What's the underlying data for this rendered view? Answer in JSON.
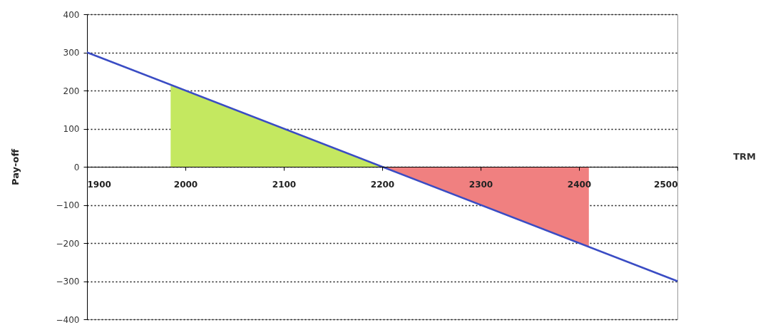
{
  "chart_data": {
    "type": "line",
    "annotations": [
      "TRM"
    ],
    "ylabel": "Pay-off",
    "xlim": [
      1900,
      2500
    ],
    "ylim": [
      -400,
      400
    ],
    "xticks": [
      1900,
      2000,
      2100,
      2200,
      2300,
      2400,
      2500
    ],
    "yticks": [
      -400,
      -300,
      -200,
      -100,
      0,
      100,
      200,
      300,
      400
    ],
    "grid": "y",
    "series": [
      {
        "type": "area",
        "color": "#c4e860",
        "x": [
          1985,
          2200
        ],
        "values": [
          215,
          0
        ]
      },
      {
        "type": "area",
        "color": "#f08080",
        "x": [
          2200,
          2410
        ],
        "values": [
          0,
          -210
        ]
      },
      {
        "color": "#3a4cc4",
        "x": [
          1900,
          2500
        ],
        "values": [
          300,
          -300
        ]
      }
    ]
  }
}
